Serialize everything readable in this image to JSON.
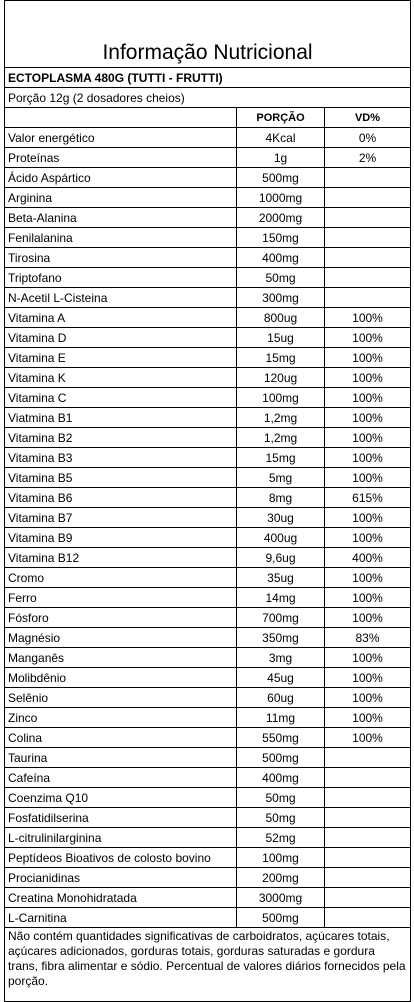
{
  "title": "Informação Nutricional",
  "product": "ECTOPLASMA 480G (TUTTI - FRUTTI)",
  "serving": "Porção 12g (2 dosadores cheios)",
  "table": {
    "headers": [
      "PORÇÃO",
      "VD%"
    ],
    "rows": [
      [
        "Valor energético",
        "4Kcal",
        "0%"
      ],
      [
        "Proteínas",
        "1g",
        "2%"
      ],
      [
        "Ácido Aspártico",
        "500mg"
      ],
      [
        "Arginina",
        "1000mg"
      ],
      [
        "Beta-Alanina",
        "2000mg"
      ],
      [
        "Fenilalanina",
        "150mg"
      ],
      [
        "Tirosina",
        "400mg"
      ],
      [
        "Triptofano",
        "50mg"
      ],
      [
        "N-Acetil L-Cisteina",
        "300mg"
      ],
      [
        "Vitamina A",
        "800ug",
        "100%"
      ],
      [
        "Vitamina D",
        "15ug",
        "100%"
      ],
      [
        "Vitamina E",
        "15mg",
        "100%"
      ],
      [
        "Vitamina K",
        "120ug",
        "100%"
      ],
      [
        "Vitamina C",
        "100mg",
        "100%"
      ],
      [
        "Viatmina B1",
        "1,2mg",
        "100%"
      ],
      [
        "Vitamina B2",
        "1,2mg",
        "100%"
      ],
      [
        "Vitamina B3",
        "15mg",
        "100%"
      ],
      [
        "Vitamina B5",
        "5mg",
        "100%"
      ],
      [
        "Vitamina B6",
        "8mg",
        "615%"
      ],
      [
        "Vitamina B7",
        "30ug",
        "100%"
      ],
      [
        "Vitamina B9",
        "400ug",
        "100%"
      ],
      [
        "Vitamina B12",
        "9,6ug",
        "400%"
      ],
      [
        "Cromo",
        "35ug",
        "100%"
      ],
      [
        "Ferro",
        "14mg",
        "100%"
      ],
      [
        "Fósforo",
        "700mg",
        "100%"
      ],
      [
        "Magnésio",
        "350mg",
        "83%"
      ],
      [
        "Manganês",
        "3mg",
        "100%"
      ],
      [
        "Molibdênio",
        "45ug",
        "100%"
      ],
      [
        "Selênio",
        "60ug",
        "100%"
      ],
      [
        "Zinco",
        "11mg",
        "100%"
      ],
      [
        "Colina",
        "550mg",
        "100%"
      ],
      [
        "Taurina",
        "500mg"
      ],
      [
        "Cafeína",
        "400mg"
      ],
      [
        "Coenzima Q10",
        "50mg"
      ],
      [
        "Fosfatidilserina",
        "50mg"
      ],
      [
        "L-citrulinilarginina",
        "52mg"
      ],
      [
        "Peptídeos Bioativos de colosto bovino",
        "100mg"
      ],
      [
        "Procianidinas",
        "200mg"
      ],
      [
        "Creatina Monohidratada",
        "3000mg"
      ],
      [
        "L-Carnitina",
        "500mg"
      ]
    ]
  },
  "footnote": "Não contém quantidades significativas de carboidratos, açúcares totais, açúcares adicionados, gorduras totais, gorduras saturadas e gordura trans, fibra alimentar e sódio. Percentual de valores diários fornecidos pela porção."
}
